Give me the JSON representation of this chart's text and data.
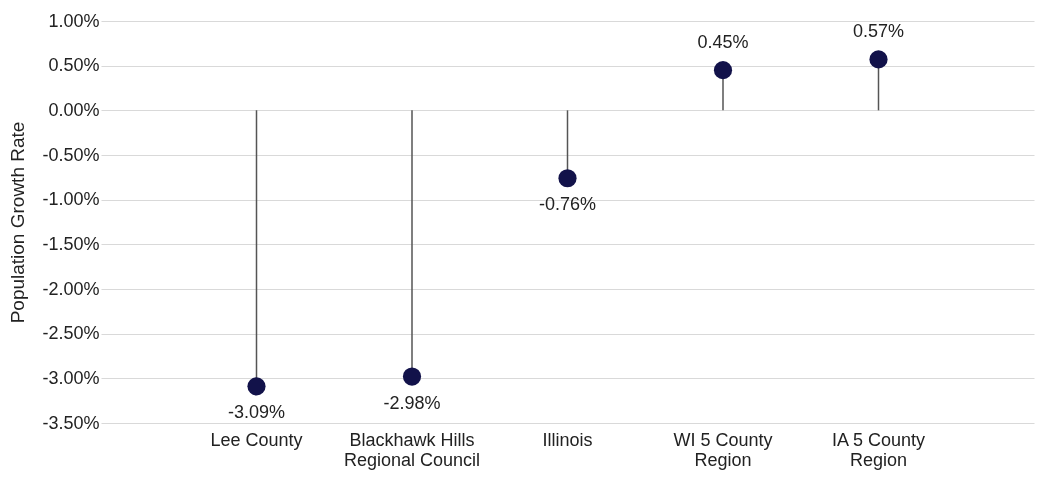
{
  "chart_data": {
    "type": "lollipop",
    "ylabel": "Population Growth Rate",
    "categories": [
      "Lee County",
      "Blackhawk Hills Regional Council",
      "Illinois",
      "WI 5 County Region",
      "IA 5 County Region"
    ],
    "values": [
      -3.09,
      -2.98,
      -0.76,
      0.45,
      0.57
    ],
    "value_labels": [
      "-3.09%",
      "-2.98%",
      "-0.76%",
      "0.45%",
      "0.57%"
    ],
    "color": "#12124a",
    "marker": "circle",
    "grid": "y",
    "ylim": [
      -3.5,
      1.0
    ],
    "yticks": [
      {
        "value": -3.5,
        "label": "-3.50%"
      },
      {
        "value": -3.0,
        "label": "-3.00%"
      },
      {
        "value": -2.5,
        "label": "-2.50%"
      },
      {
        "value": -2.0,
        "label": "-2.00%"
      },
      {
        "value": -1.5,
        "label": "-1.50%"
      },
      {
        "value": -1.0,
        "label": "-1.00%"
      },
      {
        "value": -0.5,
        "label": "-0.50%"
      },
      {
        "value": 0.0,
        "label": "0.00%"
      },
      {
        "value": 0.5,
        "label": "0.50%"
      },
      {
        "value": 1.0,
        "label": "1.00%"
      }
    ]
  }
}
